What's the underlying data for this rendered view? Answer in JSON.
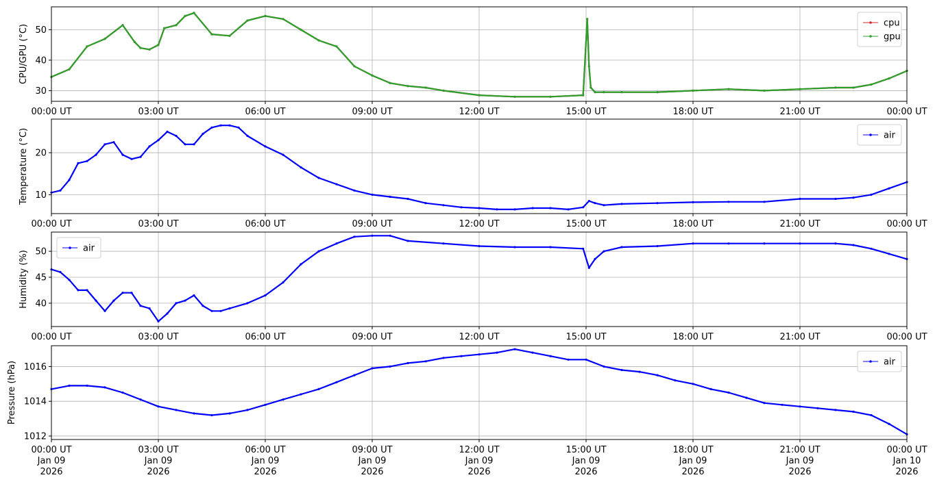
{
  "chart_data": [
    {
      "type": "line",
      "ylabel": "CPU/GPU (°C)",
      "ylim": [
        26.5,
        57.5
      ],
      "yticks": [
        30,
        40,
        50
      ],
      "grid": true,
      "legend_position": "top-right",
      "x_tick_labels": [
        "00:00 UT",
        "03:00 UT",
        "06:00 UT",
        "09:00 UT",
        "12:00 UT",
        "15:00 UT",
        "18:00 UT",
        "21:00 UT",
        "00:00 UT"
      ],
      "x": [
        "00:00",
        "00:30",
        "01:00",
        "01:30",
        "02:00",
        "02:20",
        "02:30",
        "02:45",
        "03:00",
        "03:10",
        "03:30",
        "03:45",
        "04:00",
        "04:30",
        "05:00",
        "05:30",
        "06:00",
        "06:30",
        "07:00",
        "07:30",
        "08:00",
        "08:30",
        "09:00",
        "09:30",
        "10:00",
        "10:30",
        "11:00",
        "12:00",
        "13:00",
        "14:00",
        "14:55",
        "15:02",
        "15:05",
        "15:08",
        "15:15",
        "15:30",
        "16:00",
        "17:00",
        "18:00",
        "19:00",
        "20:00",
        "21:00",
        "22:00",
        "22:30",
        "23:00",
        "23:30",
        "24:00"
      ],
      "series": [
        {
          "name": "cpu",
          "color": "#d62728",
          "values": [
            34.5,
            37.0,
            44.5,
            47.0,
            51.5,
            46.0,
            44.0,
            43.5,
            45.0,
            50.5,
            51.5,
            54.5,
            55.5,
            48.5,
            48.0,
            53.0,
            54.5,
            53.5,
            50.0,
            46.5,
            44.5,
            38.0,
            35.0,
            32.5,
            31.5,
            31.0,
            30.0,
            28.5,
            28.0,
            28.0,
            28.5,
            53.5,
            38.0,
            31.0,
            29.5,
            29.5,
            29.5,
            29.5,
            30.0,
            30.5,
            30.0,
            30.5,
            31.0,
            31.0,
            32.0,
            34.0,
            36.5
          ]
        },
        {
          "name": "gpu",
          "color": "#2ca02c",
          "values": [
            34.5,
            37.0,
            44.5,
            47.0,
            51.5,
            46.0,
            44.0,
            43.5,
            45.0,
            50.5,
            51.5,
            54.5,
            55.5,
            48.5,
            48.0,
            53.0,
            54.5,
            53.5,
            50.0,
            46.5,
            44.5,
            38.0,
            35.0,
            32.5,
            31.5,
            31.0,
            30.0,
            28.5,
            28.0,
            28.0,
            28.5,
            53.5,
            38.0,
            31.0,
            29.5,
            29.5,
            29.5,
            29.5,
            30.0,
            30.5,
            30.0,
            30.5,
            31.0,
            31.0,
            32.0,
            34.0,
            36.5
          ]
        }
      ]
    },
    {
      "type": "line",
      "ylabel": "Temperature (°C)",
      "ylim": [
        5.5,
        28.0
      ],
      "yticks": [
        10,
        20
      ],
      "grid": true,
      "legend_position": "top-right",
      "x_tick_labels": [
        "00:00 UT",
        "03:00 UT",
        "06:00 UT",
        "09:00 UT",
        "12:00 UT",
        "15:00 UT",
        "18:00 UT",
        "21:00 UT",
        "00:00 UT"
      ],
      "x": [
        "00:00",
        "00:15",
        "00:30",
        "00:45",
        "01:00",
        "01:15",
        "01:30",
        "01:45",
        "02:00",
        "02:15",
        "02:30",
        "02:45",
        "03:00",
        "03:15",
        "03:30",
        "03:45",
        "04:00",
        "04:15",
        "04:30",
        "04:45",
        "05:00",
        "05:15",
        "05:30",
        "06:00",
        "06:30",
        "07:00",
        "07:30",
        "08:00",
        "08:30",
        "09:00",
        "09:30",
        "10:00",
        "10:30",
        "11:00",
        "11:30",
        "12:00",
        "12:30",
        "13:00",
        "13:30",
        "14:00",
        "14:30",
        "14:55",
        "15:05",
        "15:15",
        "15:30",
        "16:00",
        "17:00",
        "18:00",
        "19:00",
        "20:00",
        "21:00",
        "22:00",
        "22:30",
        "23:00",
        "23:30",
        "24:00"
      ],
      "series": [
        {
          "name": "air",
          "color": "#0000ff",
          "values": [
            10.5,
            11.0,
            13.5,
            17.5,
            18.0,
            19.5,
            22.0,
            22.5,
            19.5,
            18.5,
            19.0,
            21.5,
            23.0,
            25.0,
            24.0,
            22.0,
            22.0,
            24.5,
            26.0,
            26.5,
            26.5,
            26.0,
            24.0,
            21.5,
            19.5,
            16.5,
            14.0,
            12.5,
            11.0,
            10.0,
            9.5,
            9.0,
            8.0,
            7.5,
            7.0,
            6.8,
            6.5,
            6.5,
            6.8,
            6.8,
            6.5,
            7.0,
            8.5,
            8.0,
            7.5,
            7.8,
            8.0,
            8.2,
            8.3,
            8.3,
            9.0,
            9.0,
            9.3,
            10.0,
            11.5,
            13.0
          ]
        }
      ]
    },
    {
      "type": "line",
      "ylabel": "Humidity (%)",
      "ylim": [
        35.5,
        53.7
      ],
      "yticks": [
        40,
        45,
        50
      ],
      "grid": true,
      "legend_position": "top-left",
      "x_tick_labels": [
        "00:00 UT",
        "03:00 UT",
        "06:00 UT",
        "09:00 UT",
        "12:00 UT",
        "15:00 UT",
        "18:00 UT",
        "21:00 UT",
        "00:00 UT"
      ],
      "x": [
        "00:00",
        "00:15",
        "00:30",
        "00:45",
        "01:00",
        "01:15",
        "01:30",
        "01:45",
        "02:00",
        "02:15",
        "02:30",
        "02:45",
        "03:00",
        "03:15",
        "03:30",
        "03:45",
        "04:00",
        "04:15",
        "04:30",
        "04:45",
        "05:00",
        "05:30",
        "06:00",
        "06:30",
        "07:00",
        "07:30",
        "08:00",
        "08:30",
        "09:00",
        "09:30",
        "10:00",
        "11:00",
        "12:00",
        "13:00",
        "14:00",
        "14:55",
        "15:05",
        "15:15",
        "15:30",
        "16:00",
        "17:00",
        "18:00",
        "19:00",
        "20:00",
        "21:00",
        "22:00",
        "22:30",
        "23:00",
        "23:30",
        "24:00"
      ],
      "series": [
        {
          "name": "air",
          "color": "#0000ff",
          "values": [
            46.5,
            46.0,
            44.5,
            42.5,
            42.5,
            40.5,
            38.5,
            40.5,
            42.0,
            42.0,
            39.5,
            39.0,
            36.5,
            38.0,
            40.0,
            40.5,
            41.5,
            39.5,
            38.5,
            38.5,
            39.0,
            40.0,
            41.5,
            44.0,
            47.5,
            50.0,
            51.5,
            52.8,
            53.0,
            53.0,
            52.0,
            51.5,
            51.0,
            50.8,
            50.8,
            50.5,
            46.8,
            48.5,
            50.0,
            50.8,
            51.0,
            51.5,
            51.5,
            51.5,
            51.5,
            51.5,
            51.2,
            50.5,
            49.5,
            48.5
          ]
        }
      ]
    },
    {
      "type": "line",
      "ylabel": "Pressure (hPa)",
      "ylim": [
        1011.8,
        1017.2
      ],
      "yticks": [
        1012,
        1014,
        1016
      ],
      "grid": true,
      "legend_position": "top-right",
      "x_tick_labels": [
        "00:00 UT",
        "03:00 UT",
        "06:00 UT",
        "09:00 UT",
        "12:00 UT",
        "15:00 UT",
        "18:00 UT",
        "21:00 UT",
        "00:00 UT"
      ],
      "x_tick_dates": [
        "Jan 09",
        "Jan 09",
        "Jan 09",
        "Jan 09",
        "Jan 09",
        "Jan 09",
        "Jan 09",
        "Jan 09",
        "Jan 10"
      ],
      "x_tick_years": [
        "2026",
        "2026",
        "2026",
        "2026",
        "2026",
        "2026",
        "2026",
        "2026",
        "2026"
      ],
      "x": [
        "00:00",
        "00:30",
        "01:00",
        "01:30",
        "02:00",
        "02:30",
        "03:00",
        "03:30",
        "04:00",
        "04:30",
        "05:00",
        "05:30",
        "06:00",
        "06:30",
        "07:00",
        "07:30",
        "08:00",
        "08:30",
        "09:00",
        "09:30",
        "10:00",
        "10:30",
        "11:00",
        "11:30",
        "12:00",
        "12:30",
        "13:00",
        "13:30",
        "14:00",
        "14:30",
        "15:00",
        "15:30",
        "16:00",
        "16:30",
        "17:00",
        "17:30",
        "18:00",
        "18:30",
        "19:00",
        "19:30",
        "20:00",
        "20:30",
        "21:00",
        "21:30",
        "22:00",
        "22:30",
        "23:00",
        "23:30",
        "24:00"
      ],
      "series": [
        {
          "name": "air",
          "color": "#0000ff",
          "values": [
            1014.7,
            1014.9,
            1014.9,
            1014.8,
            1014.5,
            1014.1,
            1013.7,
            1013.5,
            1013.3,
            1013.2,
            1013.3,
            1013.5,
            1013.8,
            1014.1,
            1014.4,
            1014.7,
            1015.1,
            1015.5,
            1015.9,
            1016.0,
            1016.2,
            1016.3,
            1016.5,
            1016.6,
            1016.7,
            1016.8,
            1017.0,
            1016.8,
            1016.6,
            1016.4,
            1016.4,
            1016.0,
            1015.8,
            1015.7,
            1015.5,
            1015.2,
            1015.0,
            1014.7,
            1014.5,
            1014.2,
            1013.9,
            1013.8,
            1013.7,
            1013.6,
            1013.5,
            1013.4,
            1013.2,
            1012.7,
            1012.1
          ]
        }
      ]
    }
  ]
}
